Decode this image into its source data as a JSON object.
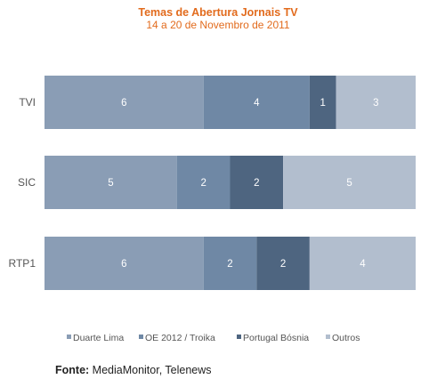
{
  "chart_data": {
    "type": "bar",
    "orientation": "horizontal",
    "stacked": true,
    "normalized": true,
    "title": "Temas de Abertura Jornais TV",
    "subtitle": "14 a 20 de Novembro de 2011",
    "categories": [
      "TVI",
      "SIC",
      "RTP1"
    ],
    "series": [
      {
        "name": "Duarte Lima",
        "values": [
          6,
          5,
          6
        ],
        "color": "#8a9db5"
      },
      {
        "name": "OE 2012 / Troika",
        "values": [
          4,
          2,
          2
        ],
        "color": "#6f88a5"
      },
      {
        "name": "Portugal Bósnia",
        "values": [
          1,
          2,
          2
        ],
        "color": "#4e6580"
      },
      {
        "name": "Outros",
        "values": [
          3,
          5,
          4
        ],
        "color": "#b2bece"
      }
    ],
    "legend_position": "bottom",
    "grid": false
  },
  "source": {
    "label": "Fonte:",
    "text": "MediaMonitor, Telenews"
  }
}
